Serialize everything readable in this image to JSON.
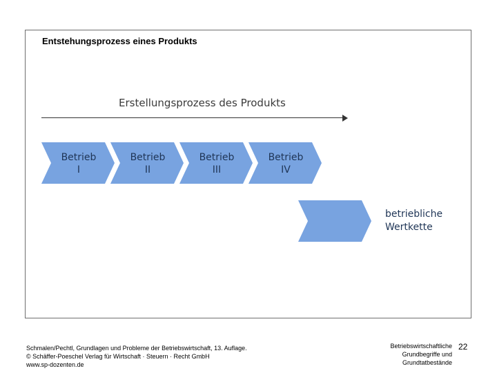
{
  "slide": {
    "title": "Entstehungsprozess eines Produkts"
  },
  "diagram": {
    "process_label": "Erstellungsprozess des Produkts",
    "fill_color": "#78a3e0",
    "stages": [
      {
        "line1": "Betrieb",
        "line2": "I"
      },
      {
        "line1": "Betrieb",
        "line2": "II"
      },
      {
        "line1": "Betrieb",
        "line2": "III"
      },
      {
        "line1": "Betrieb",
        "line2": "IV"
      }
    ],
    "value_chain": {
      "line1": "betriebliche",
      "line2": "Wertkette"
    }
  },
  "footer": {
    "source_line1": "Schmalen/Pechtl, Grundlagen und Probleme der Betriebswirtschaft, 13. Auflage.",
    "source_line2": "© Schäffer-Poeschel Verlag für Wirtschaft · Steuern · Recht GmbH",
    "source_line3": "www.sp-dozenten.de",
    "topic_line1": "Betriebswirtschaftliche",
    "topic_line2": "Grundbegriffe und",
    "topic_line3": "Grundtatbestände",
    "page_number": "22"
  }
}
